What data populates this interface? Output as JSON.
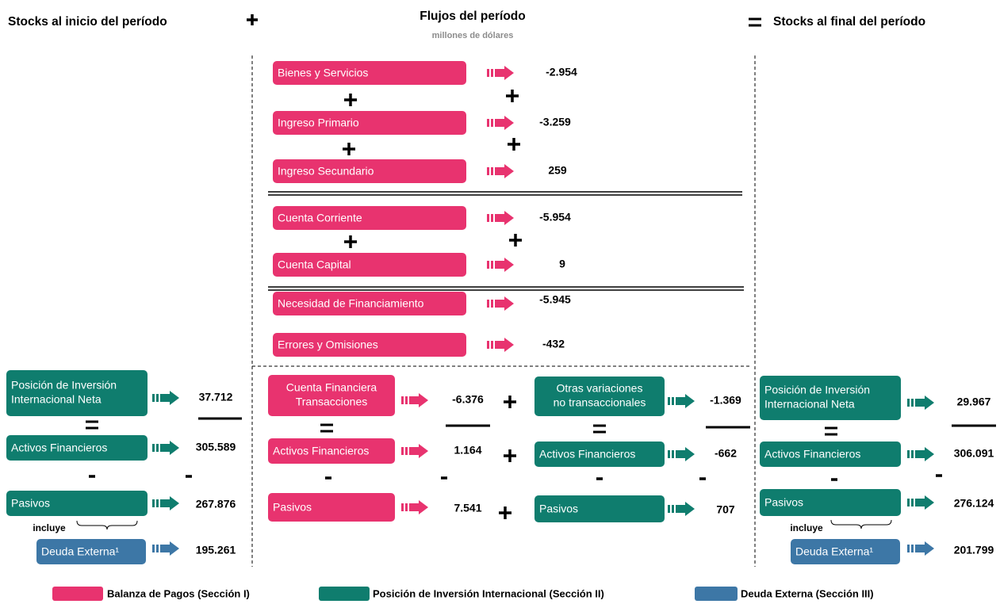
{
  "header": {
    "left_title": "Stocks al inicio del período",
    "center_title": "Flujos del período",
    "center_subtitle": "millones de dólares",
    "right_title": "Stocks al final del período"
  },
  "flows": [
    {
      "label": "Bienes y Servicios",
      "value": "-2.954"
    },
    {
      "label": "Ingreso Primario",
      "value": "-3.259"
    },
    {
      "label": "Ingreso Secundario",
      "value": "259"
    },
    {
      "label": "Cuenta Corriente",
      "value": "-5.954"
    },
    {
      "label": "Cuenta Capital",
      "value": "9"
    },
    {
      "label": "Necesidad de Financiamiento",
      "value": "-5.945"
    },
    {
      "label": "Errores y Omisiones",
      "value": "-432"
    }
  ],
  "initial_stocks": {
    "net_position": {
      "label": [
        "Posición de Inversión",
        "Internacional Neta"
      ],
      "value": "37.712"
    },
    "assets": {
      "label": "Activos Financieros",
      "value": "305.589"
    },
    "liabilities": {
      "label": "Pasivos",
      "value": "267.876"
    },
    "includes": "incluye",
    "external_debt": {
      "label": "Deuda Externa¹",
      "value": "195.261"
    }
  },
  "financial_account": {
    "net": {
      "label": [
        "Cuenta Financiera",
        "Transacciones"
      ],
      "value": "-6.376"
    },
    "assets": {
      "label": "Activos Financieros",
      "value": "1.164"
    },
    "liabilities": {
      "label": "Pasivos",
      "value": "7.541"
    }
  },
  "other_changes": {
    "net": {
      "label": [
        "Otras variaciones",
        "no transaccionales"
      ],
      "value": "-1.369"
    },
    "assets": {
      "label": "Activos Financieros",
      "value": "-662"
    },
    "liabilities": {
      "label": "Pasivos",
      "value": "707"
    }
  },
  "final_stocks": {
    "net_position": {
      "label": [
        "Posición de Inversión",
        "Internacional Neta"
      ],
      "value": "29.967"
    },
    "assets": {
      "label": "Activos Financieros",
      "value": "306.091"
    },
    "liabilities": {
      "label": "Pasivos",
      "value": "276.124"
    },
    "includes": "incluye",
    "external_debt": {
      "label": "Deuda Externa¹",
      "value": "201.799"
    }
  },
  "legend": [
    "Balanza de Pagos (Sección I)",
    "Posición de Inversión Internacional (Sección II)",
    "Deuda Externa  (Sección III)"
  ]
}
